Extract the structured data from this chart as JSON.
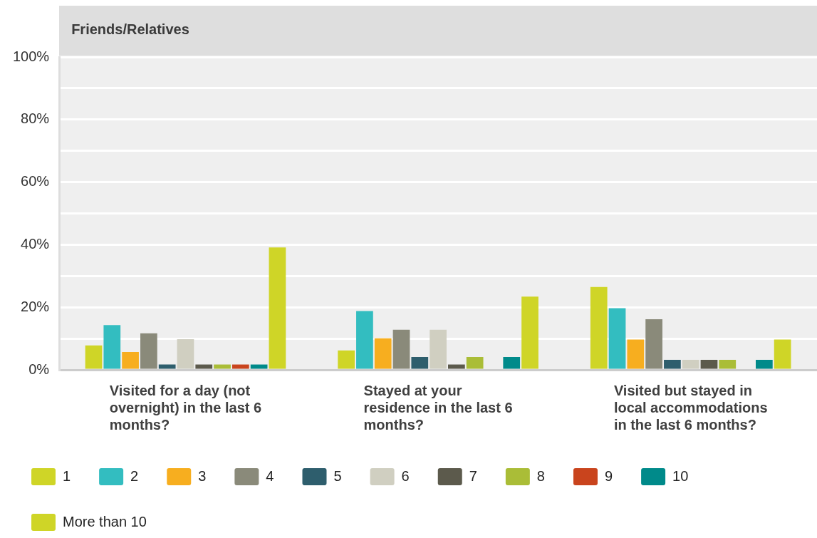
{
  "chart_data": {
    "type": "bar",
    "title": "Friends/Relatives",
    "categories": [
      "Visited for a day (not overnight) in the last 6 months?",
      "Stayed at your residence in the last 6 months?",
      "Visited but stayed in local accommodations in the last 6 months?"
    ],
    "series": [
      {
        "name": "1",
        "color": "#cfd527",
        "values": [
          7.8,
          6.2,
          26.5
        ]
      },
      {
        "name": "2",
        "color": "#33bdc0",
        "values": [
          14.3,
          18.8,
          19.7
        ]
      },
      {
        "name": "3",
        "color": "#f7ae1f",
        "values": [
          5.7,
          10.1,
          9.7
        ]
      },
      {
        "name": "4",
        "color": "#8a8a7a",
        "values": [
          11.7,
          12.8,
          16.2
        ]
      },
      {
        "name": "5",
        "color": "#2e5e6d",
        "values": [
          1.7,
          4.1,
          3.2
        ]
      },
      {
        "name": "6",
        "color": "#d0cfc1",
        "values": [
          9.8,
          12.8,
          3.2
        ]
      },
      {
        "name": "7",
        "color": "#5c5a4c",
        "values": [
          1.7,
          1.7,
          3.2
        ]
      },
      {
        "name": "8",
        "color": "#aabd37",
        "values": [
          1.7,
          4.1,
          3.2
        ]
      },
      {
        "name": "9",
        "color": "#c9441d",
        "values": [
          1.7,
          null,
          null
        ]
      },
      {
        "name": "10",
        "color": "#008a8a",
        "values": [
          1.7,
          4.1,
          3.2
        ]
      },
      {
        "name": "More than 10",
        "color": "#cfd527",
        "values": [
          39.1,
          23.4,
          9.7
        ]
      }
    ],
    "ylim": [
      0,
      100
    ],
    "yticks": [
      {
        "value": 0,
        "label": "0%"
      },
      {
        "value": 10,
        "label": null
      },
      {
        "value": 20,
        "label": "20%"
      },
      {
        "value": 30,
        "label": null
      },
      {
        "value": 40,
        "label": "40%"
      },
      {
        "value": 50,
        "label": null
      },
      {
        "value": 60,
        "label": "60%"
      },
      {
        "value": 70,
        "label": null
      },
      {
        "value": 80,
        "label": "80%"
      },
      {
        "value": 90,
        "label": null
      },
      {
        "value": 100,
        "label": "100%"
      }
    ],
    "grid": "y",
    "legend": "bottom left"
  }
}
